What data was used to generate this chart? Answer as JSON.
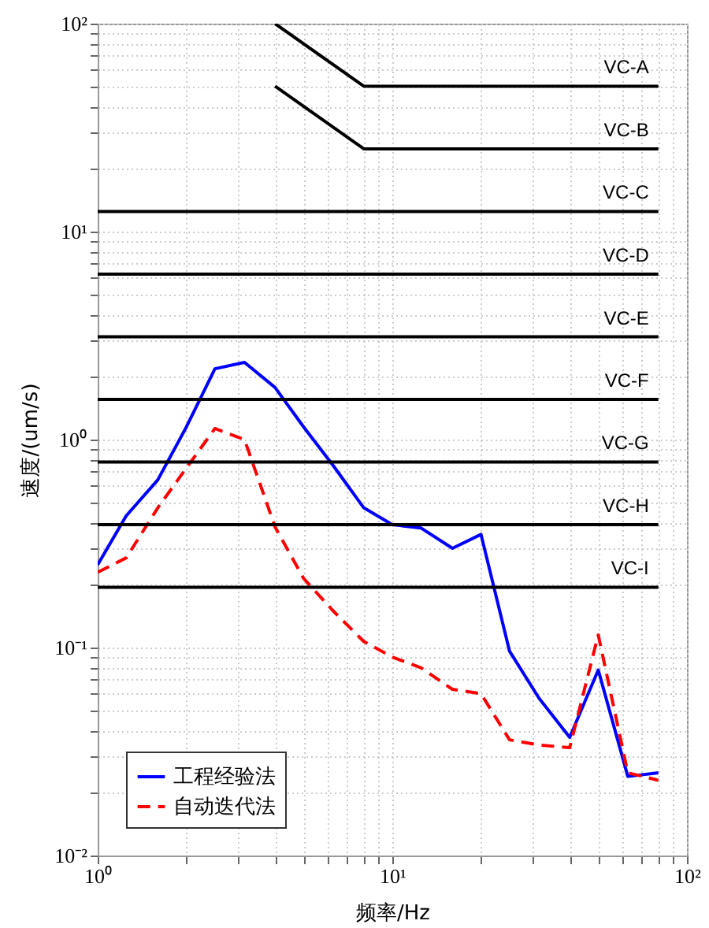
{
  "chart_data": {
    "type": "line",
    "xlabel": "频率/Hz",
    "ylabel": "速度/(um/s)",
    "log": "xy",
    "grid": true,
    "legend": "bottom left",
    "xlim": [
      1,
      100
    ],
    "ylim": [
      0.01,
      100
    ],
    "xticks": [
      {
        "value": 1,
        "label": "10⁰"
      },
      {
        "value": 2,
        "label": null
      },
      {
        "value": 3,
        "label": null
      },
      {
        "value": 4,
        "label": null
      },
      {
        "value": 5,
        "label": null
      },
      {
        "value": 6,
        "label": null
      },
      {
        "value": 7,
        "label": null
      },
      {
        "value": 8,
        "label": null
      },
      {
        "value": 9,
        "label": null
      },
      {
        "value": 10,
        "label": "10¹"
      },
      {
        "value": 20,
        "label": null
      },
      {
        "value": 30,
        "label": null
      },
      {
        "value": 40,
        "label": null
      },
      {
        "value": 50,
        "label": null
      },
      {
        "value": 60,
        "label": null
      },
      {
        "value": 70,
        "label": null
      },
      {
        "value": 80,
        "label": null
      },
      {
        "value": 90,
        "label": null
      },
      {
        "value": 100,
        "label": "10²"
      }
    ],
    "yticks": [
      {
        "value": 0.01,
        "label": "10⁻²"
      },
      {
        "value": 0.02,
        "label": null
      },
      {
        "value": 0.03,
        "label": null
      },
      {
        "value": 0.04,
        "label": null
      },
      {
        "value": 0.05,
        "label": null
      },
      {
        "value": 0.06,
        "label": null
      },
      {
        "value": 0.07,
        "label": null
      },
      {
        "value": 0.08,
        "label": null
      },
      {
        "value": 0.09,
        "label": null
      },
      {
        "value": 0.1,
        "label": "10⁻¹"
      },
      {
        "value": 0.2,
        "label": null
      },
      {
        "value": 0.3,
        "label": null
      },
      {
        "value": 0.4,
        "label": null
      },
      {
        "value": 0.5,
        "label": null
      },
      {
        "value": 0.6,
        "label": null
      },
      {
        "value": 0.7,
        "label": null
      },
      {
        "value": 0.8,
        "label": null
      },
      {
        "value": 0.9,
        "label": null
      },
      {
        "value": 1,
        "label": "10⁰"
      },
      {
        "value": 2,
        "label": null
      },
      {
        "value": 3,
        "label": null
      },
      {
        "value": 4,
        "label": null
      },
      {
        "value": 5,
        "label": null
      },
      {
        "value": 6,
        "label": null
      },
      {
        "value": 7,
        "label": null
      },
      {
        "value": 8,
        "label": null
      },
      {
        "value": 9,
        "label": null
      },
      {
        "value": 10,
        "label": "10¹"
      },
      {
        "value": 20,
        "label": null
      },
      {
        "value": 30,
        "label": null
      },
      {
        "value": 40,
        "label": null
      },
      {
        "value": 50,
        "label": null
      },
      {
        "value": 60,
        "label": null
      },
      {
        "value": 70,
        "label": null
      },
      {
        "value": 80,
        "label": null
      },
      {
        "value": 90,
        "label": null
      },
      {
        "value": 100,
        "label": "10²"
      }
    ],
    "x": [
      1,
      1.25,
      1.6,
      2,
      2.5,
      3.15,
      4,
      5,
      6.3,
      8,
      10,
      12.5,
      16,
      20,
      25,
      31.5,
      40,
      50,
      63,
      80
    ],
    "series": [
      {
        "name": "工程经验法",
        "color": "#0000ff",
        "line_style": "solid",
        "values": [
          0.25,
          0.43,
          0.64,
          1.15,
          2.19,
          2.35,
          1.78,
          1.15,
          0.75,
          0.47,
          0.39,
          0.376,
          0.3,
          0.35,
          0.096,
          0.057,
          0.037,
          0.078,
          0.024,
          0.025
        ]
      },
      {
        "name": "自动迭代法",
        "color": "#ff0000",
        "line_style": "dashed",
        "values": [
          0.23,
          0.27,
          0.47,
          0.73,
          1.13,
          1.0,
          0.38,
          0.215,
          0.15,
          0.107,
          0.09,
          0.08,
          0.063,
          0.06,
          0.036,
          0.034,
          0.033,
          0.115,
          0.025,
          0.023
        ]
      },
      {
        "name": "VC-A",
        "color": "#000000",
        "line_style": "solid",
        "x": [
          4,
          8,
          80
        ],
        "values": [
          100,
          50,
          50
        ]
      },
      {
        "name": "VC-B",
        "color": "#000000",
        "line_style": "solid",
        "x": [
          4,
          8,
          80
        ],
        "values": [
          50,
          25,
          25
        ]
      },
      {
        "name": "VC-C",
        "color": "#000000",
        "line_style": "solid",
        "x": [
          1,
          80
        ],
        "values": [
          12.5,
          12.5
        ]
      },
      {
        "name": "VC-D",
        "color": "#000000",
        "line_style": "solid",
        "x": [
          1,
          80
        ],
        "values": [
          6.25,
          6.25
        ]
      },
      {
        "name": "VC-E",
        "color": "#000000",
        "line_style": "solid",
        "x": [
          1,
          80
        ],
        "values": [
          3.12,
          3.12
        ]
      },
      {
        "name": "VC-F",
        "color": "#000000",
        "line_style": "solid",
        "x": [
          1,
          80
        ],
        "values": [
          1.56,
          1.56
        ]
      },
      {
        "name": "VC-G",
        "color": "#000000",
        "line_style": "solid",
        "x": [
          1,
          80
        ],
        "values": [
          0.78,
          0.78
        ]
      },
      {
        "name": "VC-H",
        "color": "#000000",
        "line_style": "solid",
        "x": [
          1,
          80
        ],
        "values": [
          0.39,
          0.39
        ]
      },
      {
        "name": "VC-I",
        "color": "#000000",
        "line_style": "solid",
        "x": [
          1,
          80
        ],
        "values": [
          0.195,
          0.195
        ]
      }
    ]
  }
}
